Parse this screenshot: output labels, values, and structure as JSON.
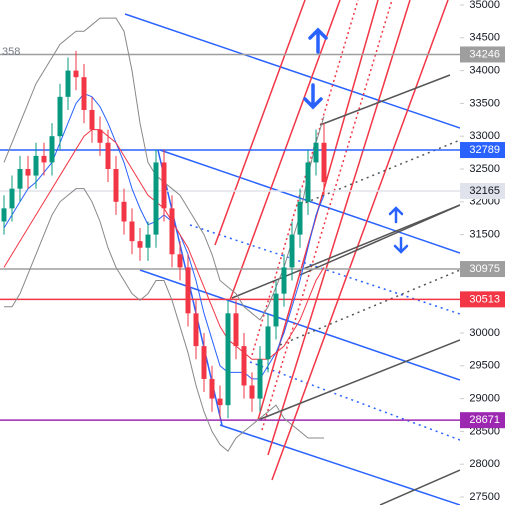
{
  "chart_data": {
    "type": "candlestick",
    "annotation": "358",
    "ylim": [
      27500,
      35000
    ],
    "yticks": [
      27500,
      28000,
      28500,
      29000,
      29500,
      30000,
      30500,
      31000,
      31500,
      32000,
      32500,
      33000,
      33500,
      34000,
      34500,
      35000
    ],
    "up_color": "#089981",
    "down_color": "#f23645",
    "series": {
      "open": [
        31700,
        31900,
        32200,
        32500,
        32400,
        32700,
        32600,
        33000,
        33600,
        34000,
        33900,
        33400,
        33100,
        32900,
        32500,
        32000,
        31700,
        31400,
        31300,
        31500,
        32600,
        31900,
        31200,
        31000,
        30300,
        29800,
        29300,
        29000,
        28900,
        30300,
        29800,
        29200,
        29000,
        29600,
        30100,
        30600,
        31000,
        31500,
        32000,
        32600,
        32900
      ],
      "high": [
        32100,
        32400,
        32700,
        32700,
        32900,
        32900,
        33200,
        33800,
        34200,
        34300,
        34100,
        33600,
        33300,
        33100,
        32700,
        32200,
        31900,
        31600,
        31700,
        32800,
        32800,
        32100,
        31400,
        31200,
        30500,
        30000,
        29500,
        29200,
        30500,
        30500,
        30000,
        29400,
        29800,
        30300,
        30800,
        31200,
        31700,
        32200,
        32800,
        33100,
        33200
      ],
      "low": [
        31500,
        31700,
        32000,
        32200,
        32200,
        32400,
        32400,
        32800,
        33400,
        33700,
        33200,
        32900,
        32700,
        32300,
        31800,
        31500,
        31200,
        31100,
        31100,
        31300,
        31700,
        31000,
        30800,
        30100,
        29600,
        29100,
        28800,
        28700,
        28700,
        29600,
        29000,
        28800,
        28800,
        29400,
        29900,
        30400,
        30800,
        31300,
        31800,
        32400,
        32100
      ],
      "close": [
        31900,
        32200,
        32500,
        32400,
        32700,
        32600,
        33000,
        33600,
        34000,
        33900,
        33400,
        33100,
        32900,
        32500,
        32000,
        31700,
        31400,
        31300,
        31500,
        32600,
        31900,
        31200,
        31000,
        30300,
        29800,
        29300,
        29000,
        28900,
        30300,
        29800,
        29200,
        29000,
        29600,
        30100,
        30600,
        31000,
        31500,
        32000,
        32600,
        32900,
        32300
      ]
    },
    "lines": [
      {
        "color": "#2962ff",
        "values": [
          31600,
          31800,
          32000,
          32200,
          32300,
          32450,
          32600,
          32900,
          33200,
          33500,
          33650,
          33600,
          33450,
          33200,
          32900,
          32600,
          32200,
          31900,
          31650,
          31700,
          31800,
          31700,
          31500,
          31200,
          30800,
          30300,
          29900,
          29500,
          29400,
          29400,
          29400,
          29300,
          29300,
          29500,
          29700,
          30000,
          30400,
          30800,
          31300,
          31800,
          32100
        ]
      },
      {
        "color": "#f23645",
        "values": [
          31000,
          31200,
          31400,
          31600,
          31800,
          32000,
          32200,
          32400,
          32600,
          32800,
          33000,
          33100,
          33100,
          33000,
          32900,
          32700,
          32500,
          32300,
          32100,
          32000,
          31900,
          31700,
          31500,
          31300,
          31000,
          30700,
          30400,
          30100,
          29900,
          29800,
          29700,
          29600,
          29600,
          29600,
          29700,
          29800,
          30000,
          30200,
          30500,
          30800,
          31000
        ]
      },
      {
        "color": "#888888",
        "values": [
          32600,
          32900,
          33200,
          33500,
          33800,
          34000,
          34200,
          34400,
          34500,
          34600,
          34600,
          34700,
          34800,
          34800,
          34800,
          34600,
          34000,
          33200,
          32600,
          32400,
          32300,
          32200,
          32100,
          31900,
          31700,
          31500,
          31200,
          30800,
          30700,
          30600,
          30400,
          30300,
          30200,
          30400,
          30700,
          31000,
          31400,
          31800,
          32400,
          32900,
          33300
        ]
      },
      {
        "color": "#888888",
        "values": [
          30400,
          30400,
          30600,
          30900,
          31200,
          31500,
          31800,
          32000,
          32100,
          32200,
          32200,
          32000,
          31700,
          31300,
          31000,
          30800,
          30600,
          30500,
          30600,
          30800,
          30800,
          30500,
          30100,
          29700,
          29200,
          28800,
          28500,
          28300,
          28200,
          28400,
          28500,
          28600,
          28700,
          28800,
          28900,
          28700,
          28600,
          28500,
          28400,
          28400,
          28400
        ]
      }
    ],
    "price_tags": [
      {
        "value": 34246,
        "color": "#9e9e9e",
        "text_color": "#ffffff"
      },
      {
        "value": 32789,
        "color": "#2962ff",
        "text_color": "#ffffff"
      },
      {
        "value": 32165,
        "color": "#e0e3eb",
        "text_color": "#131722"
      },
      {
        "value": 30975,
        "color": "#9e9e9e",
        "text_color": "#ffffff"
      },
      {
        "value": 30513,
        "color": "#f23645",
        "text_color": "#ffffff"
      },
      {
        "value": 28671,
        "color": "#9c27b0",
        "text_color": "#ffffff"
      }
    ]
  }
}
